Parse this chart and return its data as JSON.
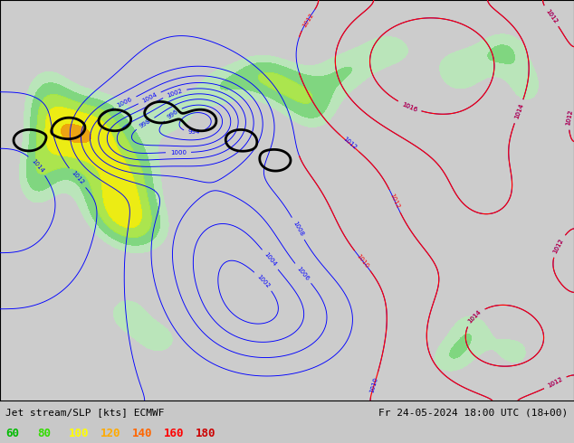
{
  "title_left": "Jet stream/SLP [kts] ECMWF",
  "title_right": "Fr 24-05-2024 18:00 UTC (18+00)",
  "legend_values": [
    "60",
    "80",
    "100",
    "120",
    "140",
    "160",
    "180"
  ],
  "legend_colors": [
    "#00bb00",
    "#33dd00",
    "#ffff00",
    "#ffaa00",
    "#ff6600",
    "#ff0000",
    "#cc0000"
  ],
  "bg_color": "#c8c8c8",
  "map_bg": "#cccccc",
  "figsize": [
    6.34,
    4.9
  ],
  "dpi": 100,
  "bottom_bar_height": 0.095,
  "title_fontsize": 8.0,
  "legend_fontsize": 9.0
}
